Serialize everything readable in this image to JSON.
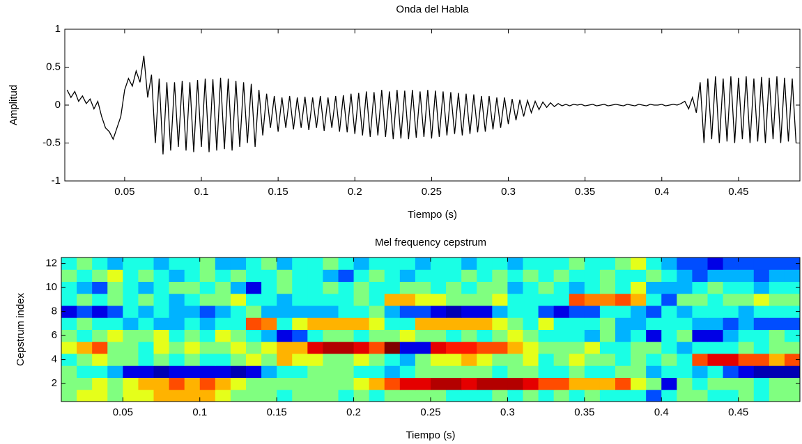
{
  "chart_data": [
    {
      "type": "line",
      "title": "Onda del Habla",
      "xlabel": "Tiempo (s)",
      "ylabel": "Amplitud",
      "xlim": [
        0.011,
        0.49
      ],
      "ylim": [
        -1,
        1
      ],
      "xticks": [
        0.05,
        0.1,
        0.15,
        0.2,
        0.25,
        0.3,
        0.35,
        0.4,
        0.45
      ],
      "yticks": [
        -1,
        -0.5,
        0,
        0.5,
        1
      ],
      "color": "#000000",
      "x": [
        0.0125,
        0.015,
        0.0175,
        0.02,
        0.0225,
        0.025,
        0.0275,
        0.03,
        0.0325,
        0.035,
        0.0375,
        0.04,
        0.0425,
        0.045,
        0.0475,
        0.05,
        0.0525,
        0.055,
        0.0575,
        0.06,
        0.0625,
        0.065,
        0.0675,
        0.07,
        0.0725,
        0.075,
        0.0775,
        0.08,
        0.0825,
        0.085,
        0.0875,
        0.09,
        0.0925,
        0.095,
        0.0975,
        0.1,
        0.1025,
        0.105,
        0.1075,
        0.11,
        0.1125,
        0.115,
        0.1175,
        0.12,
        0.1225,
        0.125,
        0.1275,
        0.13,
        0.1325,
        0.135,
        0.1375,
        0.14,
        0.1425,
        0.145,
        0.1475,
        0.15,
        0.1525,
        0.155,
        0.1575,
        0.16,
        0.1625,
        0.165,
        0.1675,
        0.17,
        0.1725,
        0.175,
        0.1775,
        0.18,
        0.1825,
        0.185,
        0.1875,
        0.19,
        0.1925,
        0.195,
        0.1975,
        0.2,
        0.2025,
        0.205,
        0.2075,
        0.21,
        0.2125,
        0.215,
        0.2175,
        0.22,
        0.2225,
        0.225,
        0.2275,
        0.23,
        0.2325,
        0.235,
        0.2375,
        0.24,
        0.2425,
        0.245,
        0.2475,
        0.25,
        0.2525,
        0.255,
        0.2575,
        0.26,
        0.2625,
        0.265,
        0.2675,
        0.27,
        0.2725,
        0.275,
        0.2775,
        0.28,
        0.2825,
        0.285,
        0.2875,
        0.29,
        0.2925,
        0.295,
        0.2975,
        0.3,
        0.3025,
        0.305,
        0.3075,
        0.31,
        0.3125,
        0.315,
        0.3175,
        0.32,
        0.3225,
        0.325,
        0.3275,
        0.33,
        0.3325,
        0.335,
        0.3375,
        0.34,
        0.3425,
        0.345,
        0.3475,
        0.35,
        0.3525,
        0.355,
        0.3575,
        0.36,
        0.3625,
        0.365,
        0.3675,
        0.37,
        0.3725,
        0.375,
        0.3775,
        0.38,
        0.3825,
        0.385,
        0.3875,
        0.39,
        0.3925,
        0.395,
        0.3975,
        0.4,
        0.4025,
        0.405,
        0.4075,
        0.41,
        0.4125,
        0.415,
        0.4175,
        0.42,
        0.4225,
        0.425,
        0.4275,
        0.43,
        0.4325,
        0.435,
        0.4375,
        0.44,
        0.4425,
        0.445,
        0.4475,
        0.45,
        0.4525,
        0.455,
        0.4575,
        0.46,
        0.4625,
        0.465,
        0.4675,
        0.47,
        0.4725,
        0.475,
        0.4775,
        0.48,
        0.4825,
        0.485,
        0.4875
      ],
      "values": [
        0.2,
        0.1,
        0.18,
        0.05,
        0.12,
        0.02,
        0.08,
        -0.05,
        0.05,
        -0.15,
        -0.3,
        -0.35,
        -0.45,
        -0.3,
        -0.15,
        0.2,
        0.35,
        0.25,
        0.45,
        0.3,
        0.65,
        0.1,
        0.4,
        -0.5,
        0.35,
        -0.65,
        0.3,
        -0.6,
        0.3,
        -0.55,
        0.32,
        -0.6,
        0.3,
        -0.62,
        0.33,
        -0.55,
        0.35,
        -0.62,
        0.34,
        -0.6,
        0.36,
        -0.58,
        0.35,
        -0.6,
        0.32,
        -0.55,
        0.3,
        -0.5,
        0.28,
        -0.55,
        0.2,
        -0.4,
        0.15,
        -0.3,
        0.12,
        -0.35,
        0.1,
        -0.3,
        0.12,
        -0.32,
        0.1,
        -0.3,
        0.11,
        -0.33,
        0.1,
        -0.3,
        0.12,
        -0.34,
        0.1,
        -0.3,
        0.12,
        -0.35,
        0.13,
        -0.36,
        0.15,
        -0.38,
        0.16,
        -0.4,
        0.18,
        -0.42,
        0.17,
        -0.4,
        0.2,
        -0.42,
        0.18,
        -0.45,
        0.2,
        -0.44,
        0.19,
        -0.45,
        0.2,
        -0.43,
        0.18,
        -0.42,
        0.2,
        -0.44,
        0.19,
        -0.42,
        0.18,
        -0.4,
        0.17,
        -0.38,
        0.16,
        -0.4,
        0.15,
        -0.38,
        0.14,
        -0.36,
        0.12,
        -0.35,
        0.12,
        -0.32,
        0.1,
        -0.3,
        0.1,
        -0.25,
        0.08,
        -0.2,
        0.07,
        -0.15,
        0.06,
        -0.1,
        0.05,
        -0.06,
        0.04,
        -0.03,
        0.03,
        -0.02,
        0.02,
        -0.01,
        0.01,
        -0.01,
        0.01,
        0,
        0.01,
        -0.01,
        0,
        0.01,
        -0.01,
        0,
        0.01,
        -0.01,
        0,
        0.01,
        0,
        -0.01,
        0.01,
        0,
        -0.01,
        0.01,
        0,
        -0.01,
        0.01,
        0,
        0,
        0.01,
        -0.01,
        0,
        0.01,
        0,
        0.02,
        0.05,
        -0.05,
        0.1,
        -0.1,
        0.3,
        -0.5,
        0.35,
        -0.45,
        0.38,
        -0.5,
        0.35,
        -0.48,
        0.38,
        -0.5,
        0.36,
        -0.45,
        0.38,
        -0.5,
        0.35,
        -0.48,
        0.37,
        -0.5,
        0.36,
        -0.45,
        0.38,
        -0.5,
        0.36,
        -0.48,
        0.35,
        -0.5
      ]
    },
    {
      "type": "heatmap",
      "title": "Mel frequency cepstrum",
      "xlabel": "Tiempo (s)",
      "ylabel": "Cepstrum index",
      "xlim": [
        0.01,
        0.49
      ],
      "ylim": [
        0.5,
        12.5
      ],
      "xticks": [
        0.05,
        0.1,
        0.15,
        0.2,
        0.25,
        0.3,
        0.35,
        0.4,
        0.45
      ],
      "yticks": [
        2,
        4,
        6,
        8,
        10,
        12
      ],
      "colormap": "jet",
      "clim": [
        0,
        1
      ],
      "x": [
        0.015,
        0.025,
        0.035,
        0.045,
        0.055,
        0.065,
        0.075,
        0.085,
        0.095,
        0.105,
        0.115,
        0.125,
        0.135,
        0.145,
        0.155,
        0.165,
        0.175,
        0.185,
        0.195,
        0.205,
        0.215,
        0.225,
        0.235,
        0.245,
        0.255,
        0.265,
        0.275,
        0.285,
        0.295,
        0.305,
        0.315,
        0.325,
        0.335,
        0.345,
        0.355,
        0.365,
        0.375,
        0.385,
        0.395,
        0.405,
        0.415,
        0.425,
        0.435,
        0.445,
        0.455,
        0.465,
        0.475,
        0.485
      ],
      "y": [
        1,
        2,
        3,
        4,
        5,
        6,
        7,
        8,
        9,
        10,
        11,
        12
      ],
      "values": [
        [
          0.5,
          0.6,
          0.6,
          0.5,
          0.6,
          0.6,
          0.7,
          0.7,
          0.7,
          0.7,
          0.6,
          0.5,
          0.5,
          0.5,
          0.4,
          0.5,
          0.5,
          0.5,
          0.4,
          0.5,
          0.4,
          0.5,
          0.5,
          0.5,
          0.5,
          0.4,
          0.4,
          0.4,
          0.5,
          0.4,
          0.5,
          0.4,
          0.5,
          0.4,
          0.5,
          0.4,
          0.4,
          0.4,
          0.2,
          0.4,
          0.5,
          0.5,
          0.4,
          0.4,
          0.5,
          0.4,
          0.5,
          0.5
        ],
        [
          0.5,
          0.5,
          0.6,
          0.5,
          0.6,
          0.7,
          0.7,
          0.8,
          0.7,
          0.8,
          0.7,
          0.6,
          0.5,
          0.5,
          0.5,
          0.5,
          0.5,
          0.5,
          0.5,
          0.6,
          0.7,
          0.8,
          0.9,
          0.9,
          0.95,
          0.95,
          0.9,
          0.95,
          0.95,
          0.95,
          0.9,
          0.8,
          0.8,
          0.7,
          0.7,
          0.7,
          0.8,
          0.6,
          0.5,
          0.1,
          0.5,
          0.4,
          0.5,
          0.5,
          0.5,
          0.4,
          0.5,
          0.5
        ],
        [
          0.5,
          0.4,
          0.4,
          0.3,
          0.1,
          0.1,
          0.05,
          0.1,
          0.1,
          0.1,
          0.1,
          0.05,
          0.1,
          0.3,
          0.4,
          0.4,
          0.5,
          0.5,
          0.5,
          0.4,
          0.4,
          0.3,
          0.4,
          0.5,
          0.5,
          0.5,
          0.5,
          0.5,
          0.4,
          0.5,
          0.5,
          0.4,
          0.4,
          0.5,
          0.4,
          0.4,
          0.5,
          0.5,
          0.3,
          0.4,
          0.4,
          0.3,
          0.4,
          0.2,
          0.1,
          0.05,
          0.05,
          0.05
        ],
        [
          0.4,
          0.5,
          0.6,
          0.5,
          0.5,
          0.4,
          0.5,
          0.4,
          0.5,
          0.4,
          0.4,
          0.5,
          0.6,
          0.5,
          0.7,
          0.6,
          0.6,
          0.5,
          0.5,
          0.6,
          0.5,
          0.4,
          0.3,
          0.5,
          0.6,
          0.6,
          0.7,
          0.6,
          0.5,
          0.5,
          0.6,
          0.4,
          0.5,
          0.6,
          0.5,
          0.5,
          0.4,
          0.5,
          0.4,
          0.5,
          0.4,
          0.8,
          0.9,
          0.9,
          0.8,
          0.8,
          0.7,
          0.8
        ],
        [
          0.6,
          0.7,
          0.8,
          0.5,
          0.5,
          0.4,
          0.6,
          0.5,
          0.6,
          0.5,
          0.5,
          0.6,
          0.5,
          0.6,
          0.7,
          0.7,
          0.9,
          0.95,
          0.95,
          0.9,
          0.8,
          1.0,
          0.1,
          0.1,
          0.9,
          0.85,
          0.85,
          0.8,
          0.8,
          0.7,
          0.6,
          0.5,
          0.5,
          0.5,
          0.6,
          0.4,
          0.4,
          0.5,
          0.5,
          0.4,
          0.3,
          0.4,
          0.4,
          0.4,
          0.5,
          0.4,
          0.5,
          0.5
        ],
        [
          0.5,
          0.4,
          0.5,
          0.6,
          0.5,
          0.5,
          0.6,
          0.4,
          0.5,
          0.4,
          0.6,
          0.5,
          0.4,
          0.3,
          0.1,
          0.2,
          0.4,
          0.5,
          0.5,
          0.4,
          0.5,
          0.5,
          0.6,
          0.5,
          0.5,
          0.4,
          0.5,
          0.4,
          0.5,
          0.6,
          0.5,
          0.4,
          0.4,
          0.4,
          0.3,
          0.5,
          0.3,
          0.4,
          0.1,
          0.4,
          0.5,
          0.1,
          0.1,
          0.3,
          0.4,
          0.4,
          0.5,
          0.4
        ],
        [
          0.4,
          0.5,
          0.4,
          0.4,
          0.3,
          0.4,
          0.3,
          0.3,
          0.4,
          0.3,
          0.4,
          0.4,
          0.8,
          0.75,
          0.4,
          0.6,
          0.7,
          0.7,
          0.7,
          0.7,
          0.6,
          0.4,
          0.4,
          0.7,
          0.7,
          0.7,
          0.7,
          0.7,
          0.6,
          0.5,
          0.4,
          0.6,
          0.4,
          0.4,
          0.4,
          0.5,
          0.3,
          0.3,
          0.4,
          0.4,
          0.4,
          0.3,
          0.3,
          0.2,
          0.3,
          0.2,
          0.2,
          0.2
        ],
        [
          0.1,
          0.2,
          0.1,
          0.2,
          0.4,
          0.3,
          0.4,
          0.3,
          0.3,
          0.2,
          0.3,
          0.4,
          0.5,
          0.3,
          0.3,
          0.3,
          0.3,
          0.3,
          0.4,
          0.4,
          0.5,
          0.3,
          0.2,
          0.2,
          0.1,
          0.05,
          0.1,
          0.1,
          0.3,
          0.4,
          0.4,
          0.2,
          0.1,
          0.2,
          0.2,
          0.4,
          0.4,
          0.3,
          0.2,
          0.4,
          0.3,
          0.4,
          0.4,
          0.4,
          0.3,
          0.4,
          0.4,
          0.4
        ],
        [
          0.4,
          0.5,
          0.4,
          0.5,
          0.4,
          0.5,
          0.4,
          0.3,
          0.4,
          0.5,
          0.5,
          0.6,
          0.4,
          0.4,
          0.3,
          0.4,
          0.4,
          0.4,
          0.4,
          0.5,
          0.4,
          0.7,
          0.7,
          0.6,
          0.6,
          0.5,
          0.5,
          0.5,
          0.6,
          0.4,
          0.4,
          0.4,
          0.4,
          0.8,
          0.75,
          0.75,
          0.8,
          0.7,
          0.4,
          0.2,
          0.5,
          0.5,
          0.4,
          0.5,
          0.5,
          0.6,
          0.5,
          0.5
        ],
        [
          0.4,
          0.3,
          0.2,
          0.5,
          0.4,
          0.3,
          0.4,
          0.5,
          0.5,
          0.4,
          0.5,
          0.3,
          0.1,
          0.4,
          0.5,
          0.4,
          0.4,
          0.5,
          0.4,
          0.5,
          0.4,
          0.4,
          0.5,
          0.5,
          0.4,
          0.5,
          0.4,
          0.5,
          0.5,
          0.3,
          0.4,
          0.5,
          0.4,
          0.3,
          0.4,
          0.5,
          0.4,
          0.6,
          0.3,
          0.3,
          0.3,
          0.4,
          0.5,
          0.4,
          0.4,
          0.3,
          0.4,
          0.4
        ],
        [
          0.5,
          0.4,
          0.5,
          0.6,
          0.4,
          0.5,
          0.4,
          0.3,
          0.4,
          0.5,
          0.4,
          0.5,
          0.4,
          0.4,
          0.5,
          0.4,
          0.4,
          0.3,
          0.2,
          0.4,
          0.5,
          0.4,
          0.3,
          0.4,
          0.4,
          0.4,
          0.5,
          0.4,
          0.5,
          0.4,
          0.5,
          0.4,
          0.5,
          0.4,
          0.4,
          0.5,
          0.4,
          0.4,
          0.5,
          0.4,
          0.3,
          0.2,
          0.3,
          0.3,
          0.3,
          0.2,
          0.3,
          0.3
        ],
        [
          0.4,
          0.5,
          0.4,
          0.3,
          0.4,
          0.4,
          0.3,
          0.4,
          0.4,
          0.5,
          0.3,
          0.3,
          0.4,
          0.5,
          0.3,
          0.4,
          0.4,
          0.5,
          0.4,
          0.3,
          0.4,
          0.4,
          0.4,
          0.3,
          0.4,
          0.4,
          0.3,
          0.4,
          0.4,
          0.3,
          0.4,
          0.4,
          0.4,
          0.5,
          0.4,
          0.4,
          0.5,
          0.6,
          0.4,
          0.3,
          0.2,
          0.2,
          0.1,
          0.2,
          0.2,
          0.2,
          0.2,
          0.2
        ]
      ]
    }
  ]
}
